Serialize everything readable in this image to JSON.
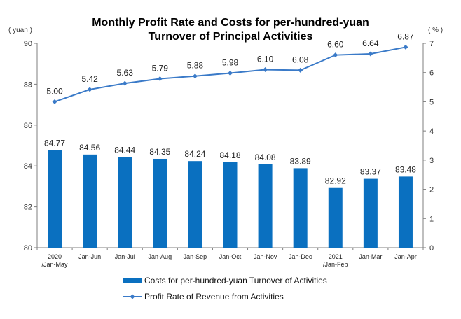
{
  "chart_data": {
    "type": "bar+line",
    "title_lines": [
      "Monthly Profit Rate and Costs for per-hundred-yuan",
      "Turnover of Principal Activities"
    ],
    "left_unit": "( yuan )",
    "right_unit": "( % )",
    "categories": [
      [
        "2020",
        "/Jan-May"
      ],
      [
        "Jan-Jun"
      ],
      [
        "Jan-Jul"
      ],
      [
        "Jan-Aug"
      ],
      [
        "Jan-Sep"
      ],
      [
        "Jan-Oct"
      ],
      [
        "Jan-Nov"
      ],
      [
        "Jan-Dec"
      ],
      [
        "2021",
        "/Jan-Feb"
      ],
      [
        "Jan-Mar"
      ],
      [
        "Jan-Apr"
      ]
    ],
    "series": [
      {
        "name": "Costs for per-hundred-yuan Turnover of  Activities",
        "type": "bar",
        "axis": "left",
        "values": [
          84.77,
          84.56,
          84.44,
          84.35,
          84.24,
          84.18,
          84.08,
          83.89,
          82.92,
          83.37,
          83.48
        ],
        "labels": [
          "84.77",
          "84.56",
          "84.44",
          "84.35",
          "84.24",
          "84.18",
          "84.08",
          "83.89",
          "82.92",
          "83.37",
          "83.48"
        ]
      },
      {
        "name": "Profit Rate of Revenue from Activities",
        "type": "line",
        "axis": "right",
        "values": [
          5.0,
          5.42,
          5.63,
          5.79,
          5.88,
          5.98,
          6.1,
          6.08,
          6.6,
          6.64,
          6.87
        ],
        "labels": [
          "5.00",
          "5.42",
          "5.63",
          "5.79",
          "5.88",
          "5.98",
          "6.10",
          "6.08",
          "6.60",
          "6.64",
          "6.87"
        ]
      }
    ],
    "left_axis": {
      "min": 80,
      "max": 90,
      "ticks": [
        "80",
        "82",
        "84",
        "86",
        "88",
        "90"
      ]
    },
    "right_axis": {
      "min": 0,
      "max": 7,
      "ticks": [
        "0",
        "1",
        "2",
        "3",
        "4",
        "5",
        "6",
        "7"
      ]
    },
    "grid": false,
    "legend_position": "bottom",
    "colors": {
      "bar": "#0a70c0",
      "line": "#3a7ac8",
      "axis": "#7f7f7f"
    }
  }
}
